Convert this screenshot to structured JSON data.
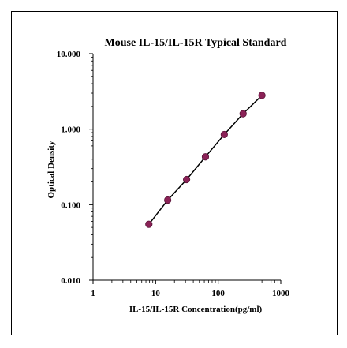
{
  "chart_data": {
    "type": "line",
    "title": "Mouse IL-15/IL-15R Typical Standard",
    "xlabel": "IL-15/IL-15R  Concentration(pg/ml)",
    "ylabel": "Optical Density",
    "x_scale": "log",
    "y_scale": "log",
    "xlim": [
      1,
      1000
    ],
    "ylim": [
      0.01,
      10
    ],
    "x_ticks": [
      "1",
      "10",
      "100",
      "1000"
    ],
    "y_ticks": [
      "0.010",
      "0.100",
      "1.000",
      "10.000"
    ],
    "grid": false,
    "series": [
      {
        "x": [
          7.8,
          15.6,
          31.25,
          62.5,
          125,
          250,
          500
        ],
        "y": [
          0.055,
          0.115,
          0.215,
          0.43,
          0.85,
          1.6,
          2.8
        ]
      }
    ],
    "colors": {
      "marker": "#8b2257",
      "line": "#000000"
    }
  }
}
